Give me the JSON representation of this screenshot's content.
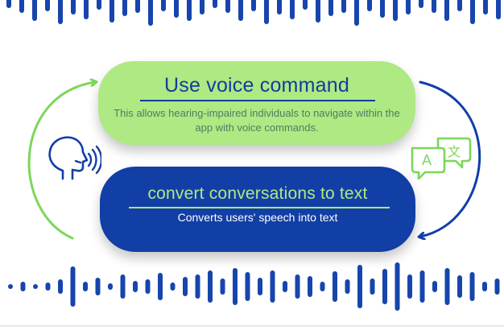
{
  "top_card": {
    "title": "Use voice command",
    "description": "This allows hearing-impaired individuals to navigate within the app with voice commands."
  },
  "bottom_card": {
    "title": "convert conversations to text",
    "description": "Converts users' speech into text"
  },
  "translate_icon": {
    "left_glyph": "A",
    "right_glyph": "文"
  },
  "colors": {
    "accent_green": "#aee983",
    "accent_blue": "#123fa6",
    "arrow_green": "#7dd65a",
    "arrow_blue": "#123fa6",
    "wave_blue": "#1745ad"
  },
  "icons": [
    "speaking-head-icon",
    "translate-icon",
    "sound-wave-top",
    "sound-wave-bottom"
  ]
}
